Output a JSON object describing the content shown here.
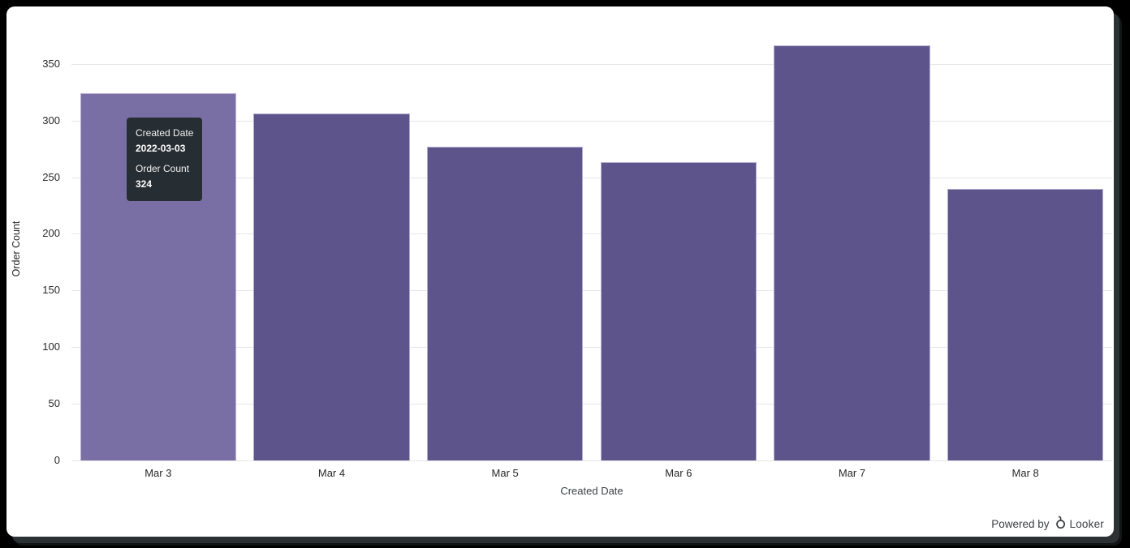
{
  "chart_data": {
    "type": "bar",
    "categories": [
      "Mar 3",
      "Mar 4",
      "Mar 5",
      "Mar 6",
      "Mar 7",
      "Mar 8"
    ],
    "values": [
      324,
      306,
      277,
      263,
      366,
      240
    ],
    "series_name": "Order Count",
    "title": "",
    "xlabel": "Created Date",
    "ylabel": "Order Count",
    "ylim": [
      0,
      372
    ],
    "yticks": [
      0,
      50,
      100,
      150,
      200,
      250,
      300,
      350
    ],
    "grid": "horizontal",
    "legend": "none",
    "hover_index": 0,
    "colors": {
      "bar": "#5d548c",
      "bar_hover": "#7a6fa4",
      "bar_border": "#b6adcf",
      "gridline": "#e6e6e6",
      "axis_text": "#282828"
    }
  },
  "tooltip": {
    "row1_label": "Created Date",
    "row1_value": "2022-03-03",
    "row2_label": "Order Count",
    "row2_value": "324"
  },
  "footer": {
    "powered_by_label": "Powered by",
    "brand": "Looker"
  }
}
